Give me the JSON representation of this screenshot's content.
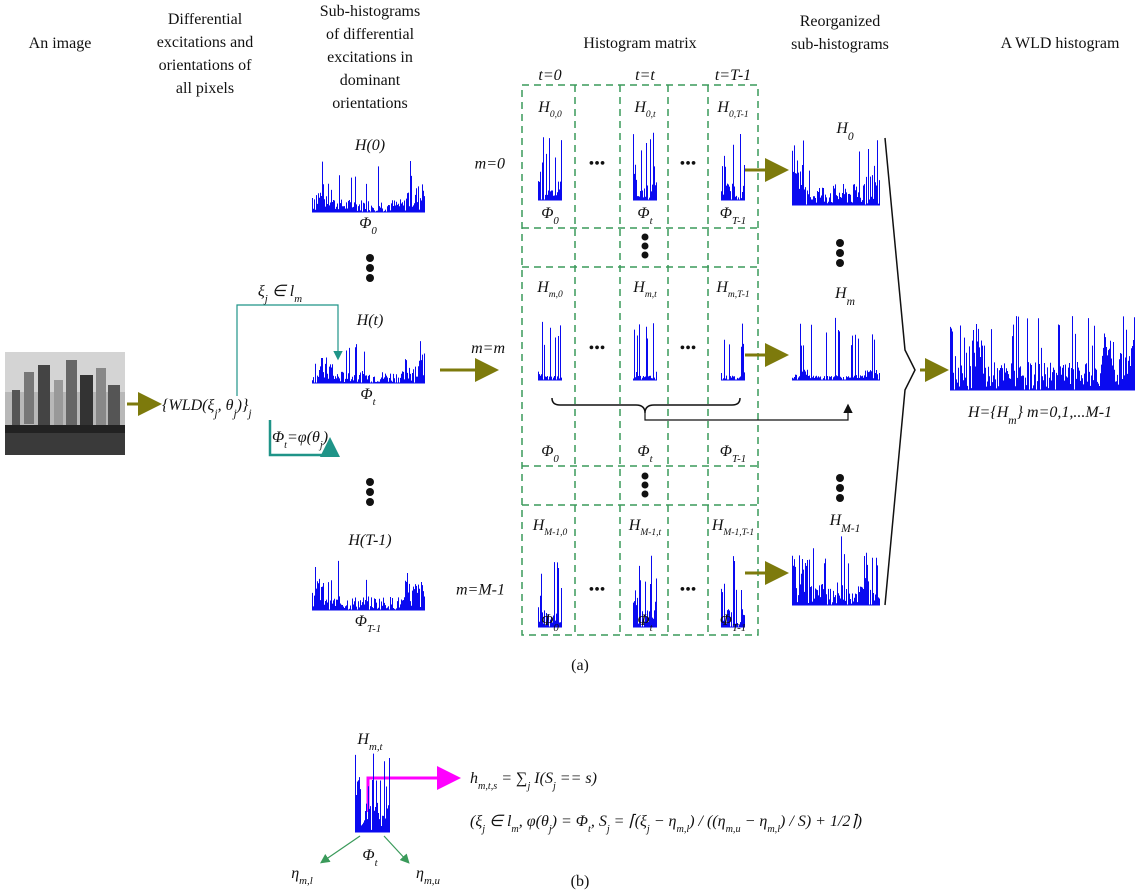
{
  "headers": {
    "image": "An image",
    "excitations": [
      "Differential",
      "excitations and",
      "orientations of",
      "all pixels"
    ],
    "sub_histograms": [
      "Sub-histograms",
      "of differential",
      "excitations in",
      "dominant",
      "orientations"
    ],
    "matrix": "Histogram matrix",
    "reorganized": [
      "Reorganized",
      "sub-histograms"
    ],
    "wld": "A WLD histogram"
  },
  "wld_set": [
    "{WLD(ξ",
    {
      "sub": "j"
    },
    ", θ",
    {
      "sub": "j"
    },
    ")}",
    {
      "sub": "j"
    }
  ],
  "excitation_condition": [
    "ξ",
    {
      "sub": "j"
    },
    " ∈ l",
    {
      "sub": "m"
    }
  ],
  "orientation_mapping": [
    "Φ",
    {
      "sub": "t"
    },
    "=φ(θ",
    {
      "sub": "j"
    },
    ")"
  ],
  "sub_histograms": [
    {
      "label": [
        "H(0)"
      ],
      "orientation": [
        "Φ",
        {
          "sub": "0"
        }
      ]
    },
    {
      "label": [
        "H(t)"
      ],
      "orientation": [
        "Φ",
        {
          "sub": "t"
        }
      ]
    },
    {
      "label": [
        "H(T-1)"
      ],
      "orientation": [
        "Φ",
        {
          "sub": "T-1"
        }
      ]
    }
  ],
  "matrix": {
    "columns": [
      "t=0",
      "t=t",
      "t=T-1"
    ],
    "rows": [
      {
        "label": "m=0",
        "cells": [
          [
            "H",
            {
              "sub": "0,0"
            }
          ],
          [
            "H",
            {
              "sub": "0,t"
            }
          ],
          [
            "H",
            {
              "sub": "0,T-1"
            }
          ]
        ]
      },
      {
        "label": "m=m",
        "cells": [
          [
            "H",
            {
              "sub": "m,0"
            }
          ],
          [
            "H",
            {
              "sub": "m,t"
            }
          ],
          [
            "H",
            {
              "sub": "m,T-1"
            }
          ]
        ]
      },
      {
        "label": "m=M-1",
        "cells": [
          [
            "H",
            {
              "sub": "M-1,0"
            }
          ],
          [
            "H",
            {
              "sub": "M-1,t"
            }
          ],
          [
            "H",
            {
              "sub": "M-1,T-1"
            }
          ]
        ]
      }
    ],
    "orientations": [
      [
        "Φ",
        {
          "sub": "0"
        }
      ],
      [
        "Φ",
        {
          "sub": "t"
        }
      ],
      [
        "Φ",
        {
          "sub": "T-1"
        }
      ]
    ],
    "ellipsis": "•••"
  },
  "reorganized": [
    [
      "H",
      {
        "sub": "0"
      }
    ],
    [
      "H",
      {
        "sub": "m"
      }
    ],
    [
      "H",
      {
        "sub": "M-1"
      }
    ]
  ],
  "wld_histogram": [
    "H={H",
    {
      "sub": "m"
    },
    "} m=0,1,...M-1"
  ],
  "captions": [
    "(a)",
    "(b)"
  ],
  "detail": {
    "label": [
      "H",
      {
        "sub": "m,t"
      }
    ],
    "orientation": [
      "Φ",
      {
        "sub": "t"
      }
    ],
    "lower": [
      "η",
      {
        "sub": "m,l"
      }
    ],
    "upper": [
      "η",
      {
        "sub": "m,u"
      }
    ],
    "formula": [
      "h",
      {
        "sub": "m,t,s"
      },
      " = ∑",
      {
        "sub": "j"
      },
      " I(S",
      {
        "sub": "j"
      },
      " == s)"
    ],
    "conditions": [
      "(ξ",
      {
        "sub": "j"
      },
      " ∈ l",
      {
        "sub": "m"
      },
      ",  φ(θ",
      {
        "sub": "j"
      },
      ") = Φ",
      {
        "sub": "t"
      },
      ",  S",
      {
        "sub": "j"
      },
      " = ⌈(ξ",
      {
        "sub": "j"
      },
      " − η",
      {
        "sub": "m,l"
      },
      ") / ((η",
      {
        "sub": "m,u"
      },
      " − η",
      {
        "sub": "m,l"
      },
      ") / S) + 1/2⌉)"
    ]
  }
}
